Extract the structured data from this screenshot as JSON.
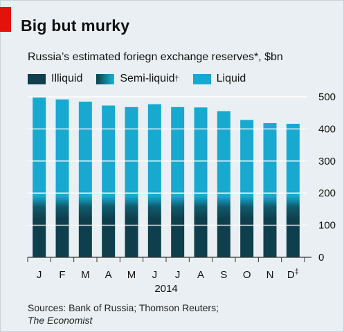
{
  "title": "Big but murky",
  "chart_data": {
    "type": "bar",
    "subtitle": "Russia’s estimated foriegn exchange reserves*, $bn",
    "legend": [
      {
        "label": "Illiquid",
        "dagger": "",
        "color": "#0f3f4c"
      },
      {
        "label": "Semi-liquid",
        "dagger": "†",
        "color": "#17a3c7"
      },
      {
        "label": "Liquid",
        "dagger": "",
        "color": "#18a9d1"
      }
    ],
    "categories": [
      "J",
      "F",
      "M",
      "A",
      "M",
      "J",
      "J",
      "A",
      "S",
      "O",
      "N",
      "D"
    ],
    "category_marks": [
      "",
      "",
      "",
      "",
      "",
      "",
      "",
      "",
      "",
      "",
      "",
      "‡"
    ],
    "year_label": "2014",
    "series": [
      {
        "name": "Illiquid",
        "values": [
          130,
          130,
          130,
          130,
          130,
          130,
          130,
          130,
          130,
          130,
          130,
          130
        ]
      },
      {
        "name": "Semi-liquid",
        "values": [
          60,
          60,
          60,
          60,
          60,
          60,
          60,
          60,
          60,
          60,
          60,
          60
        ]
      },
      {
        "name": "Liquid",
        "values": [
          308,
          302,
          295,
          283,
          278,
          287,
          278,
          277,
          265,
          238,
          228,
          226
        ]
      }
    ],
    "totals": [
      498,
      492,
      485,
      473,
      468,
      477,
      468,
      467,
      455,
      428,
      418,
      416
    ],
    "yticks": [
      0,
      100,
      200,
      300,
      400,
      500
    ],
    "ylim": [
      0,
      500
    ],
    "axis_side": "right",
    "grid": true,
    "colors": {
      "illiquid": "#0f3f4c",
      "semi_mid": "#0f5a6b",
      "liquid": "#18a9d1",
      "grid": "#ffffff"
    }
  },
  "source": {
    "line1": "Sources: Bank of Russia; Thomson Reuters;",
    "line2": "The Economist"
  }
}
